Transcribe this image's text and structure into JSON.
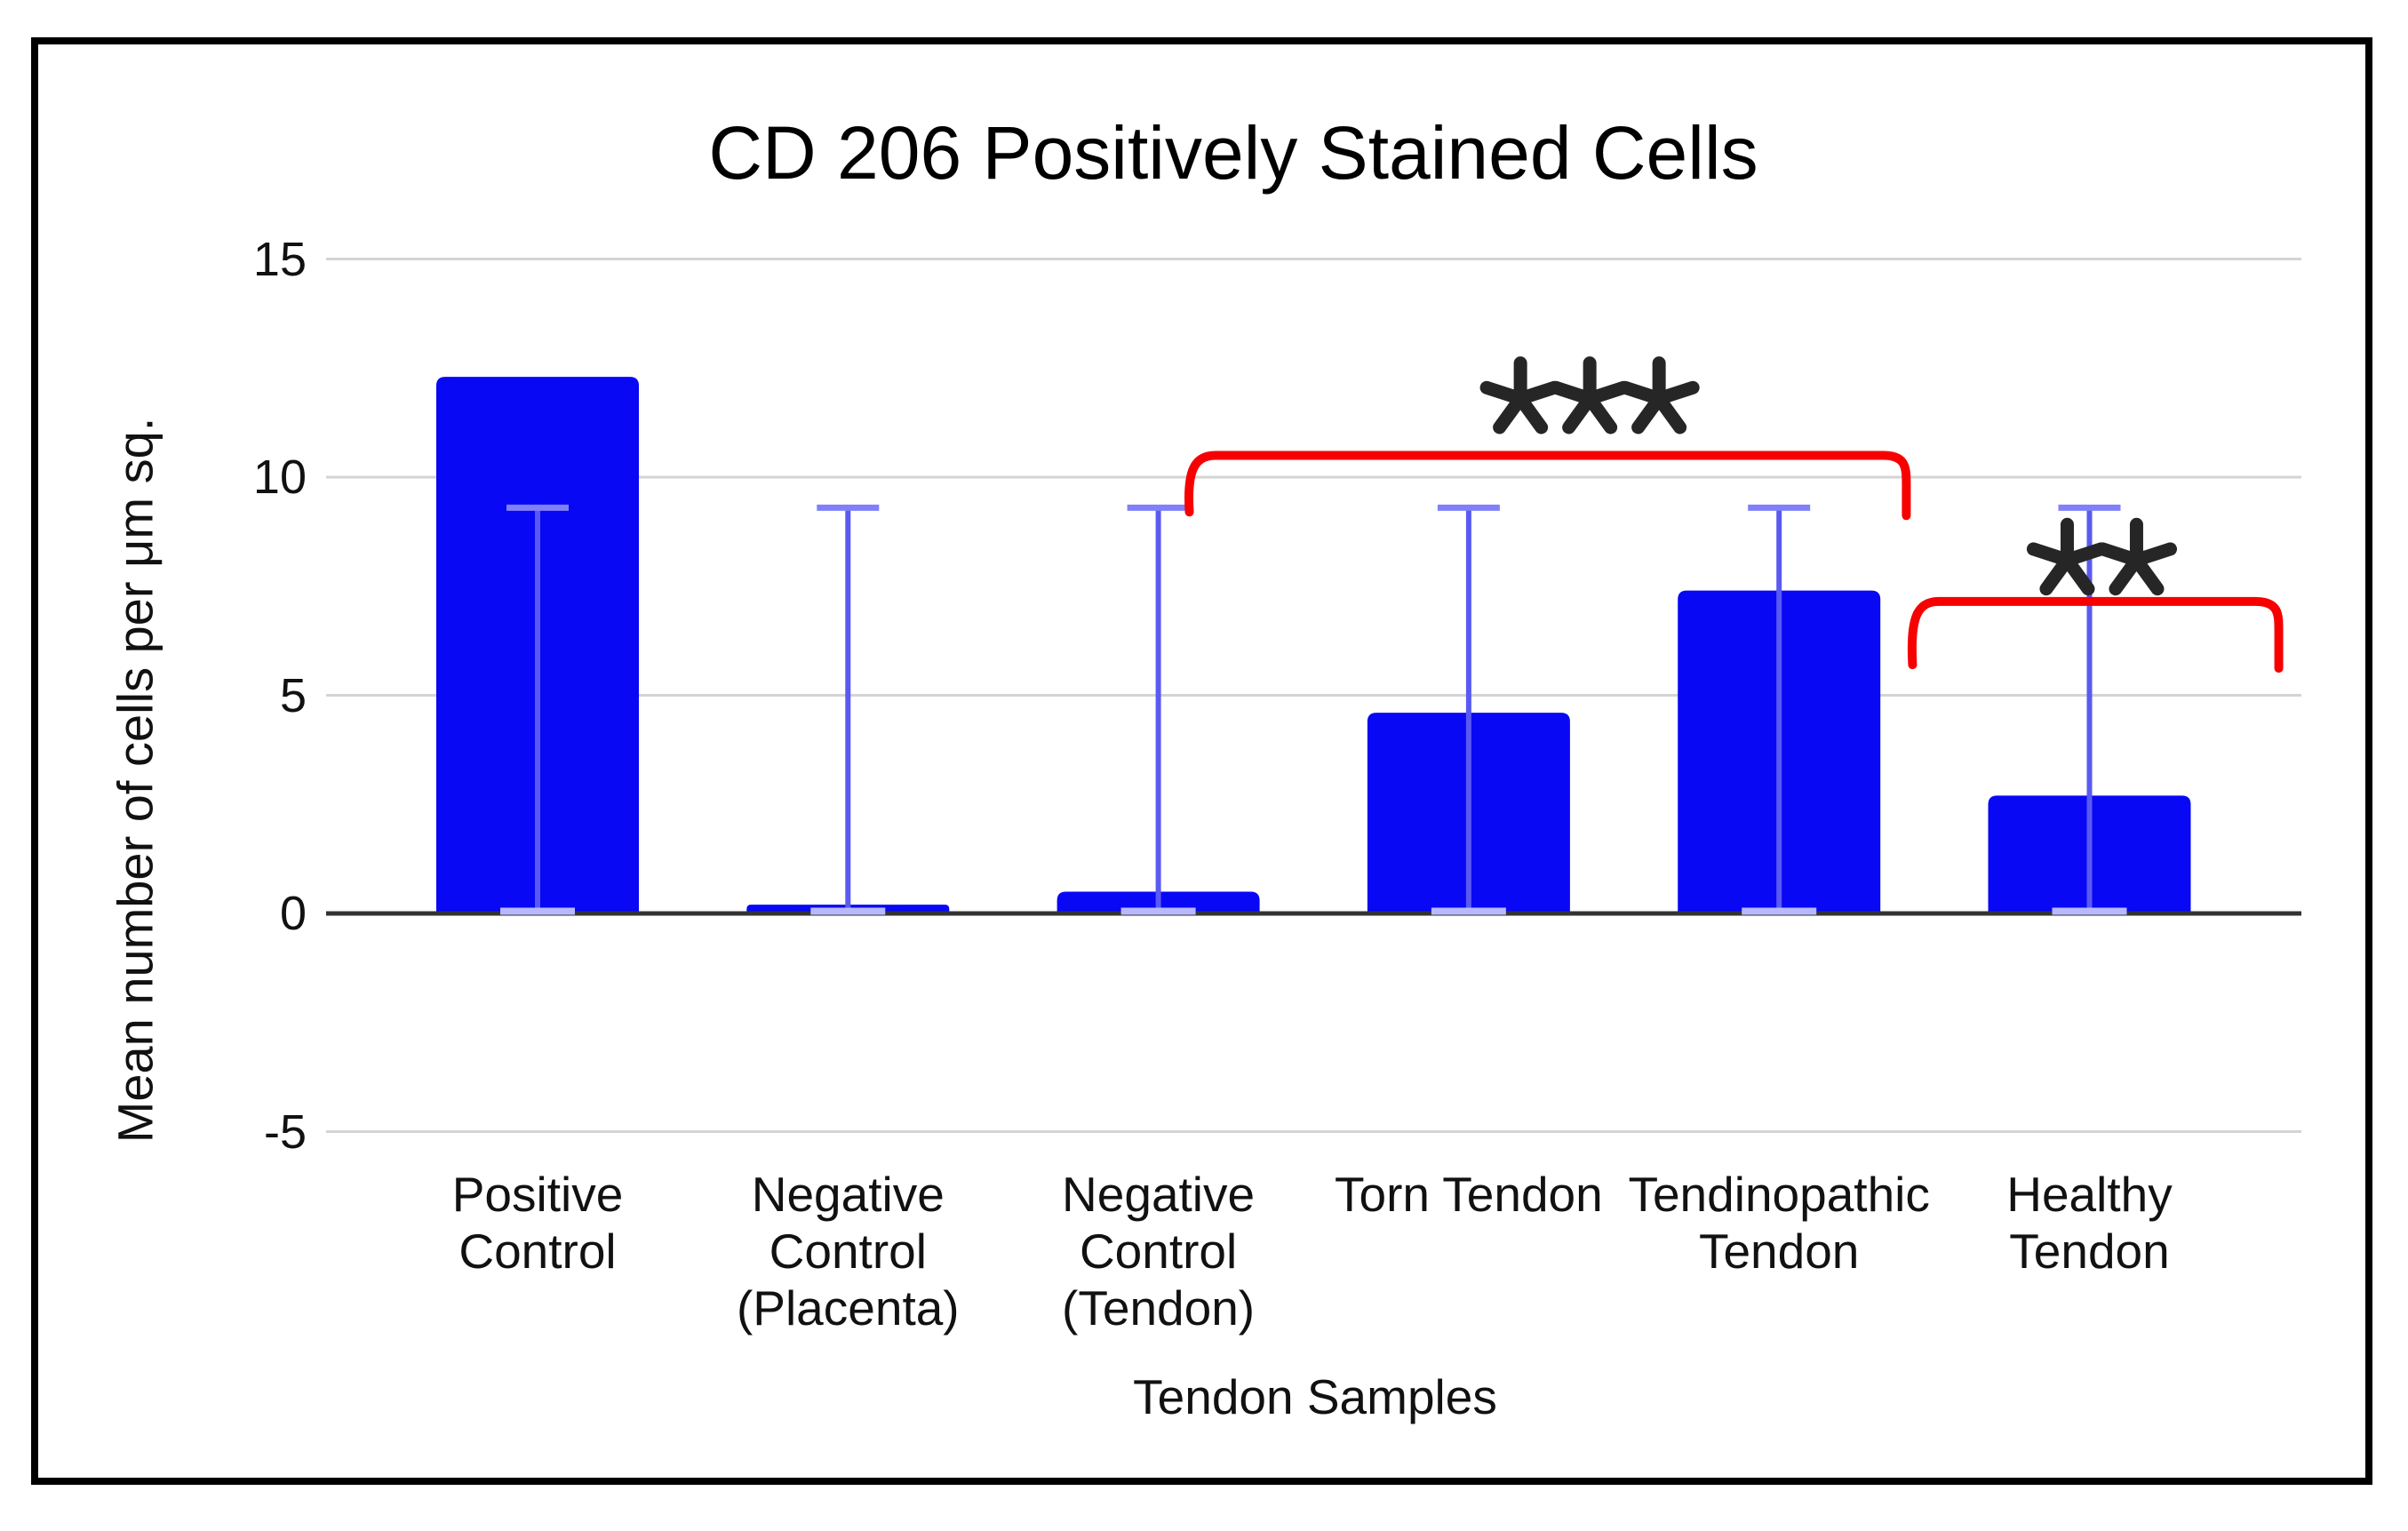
{
  "colors": {
    "bar": "#0808f5",
    "error_line": "#5a5af2",
    "error_cap_top": "#8080f8",
    "error_cap_bottom": "#b8b8fd",
    "grid": "#d4d4d4",
    "axis": "#333333",
    "bracket": "#f70000",
    "stars": "#262626",
    "text": "#111111",
    "frame_border": "#000000",
    "background": "#ffffff"
  },
  "chart_data": {
    "type": "bar",
    "title": "CD 206 Positively Stained Cells",
    "xlabel": "Tendon Samples",
    "ylabel": "Mean number of cells per μm sq.",
    "categories": [
      "Positive Control",
      "Negative Control (Placenta)",
      "Negative Control (Tendon)",
      "Torn Tendon",
      "Tendinopathic Tendon",
      "Healthy Tendon"
    ],
    "category_display_lines": [
      [
        "Positive",
        "Control"
      ],
      [
        "Negative",
        "Control",
        "(Placenta)"
      ],
      [
        "Negative",
        "Control",
        "(Tendon)"
      ],
      [
        "Torn Tendon"
      ],
      [
        "Tendinopathic",
        "Tendon"
      ],
      [
        "Healthy",
        "Tendon"
      ]
    ],
    "values": [
      12.3,
      0.2,
      0.5,
      4.6,
      7.4,
      2.7
    ],
    "error_bars": {
      "upper": 9.3,
      "lower": 0.05,
      "applies_to": "every bar"
    },
    "yticks": [
      -5,
      0,
      5,
      10,
      15
    ],
    "ylim": [
      -5,
      15
    ],
    "grid": "horizontal gridlines on",
    "legend": "none",
    "annotations": [
      {
        "stars": "***",
        "compare_from": "Negative Control (Tendon)",
        "compare_to": "Tendinopathic Tendon",
        "x_from_bar": 2.1,
        "x_to_bar": 4.41,
        "y_value": 10.5,
        "tick_down_to": 9.2,
        "stars_x_bar": 3.39,
        "stars_y_value": 11.8
      },
      {
        "stars": "**",
        "compare_from": "Tendinopathic Tendon",
        "compare_to": "Healthy Tendon",
        "x_from_bar": 4.43,
        "x_to_bar": 5.61,
        "y_value": 7.15,
        "tick_down_to": 5.7,
        "stars_x_bar": 5.04,
        "stars_y_value": 8.1
      }
    ]
  }
}
